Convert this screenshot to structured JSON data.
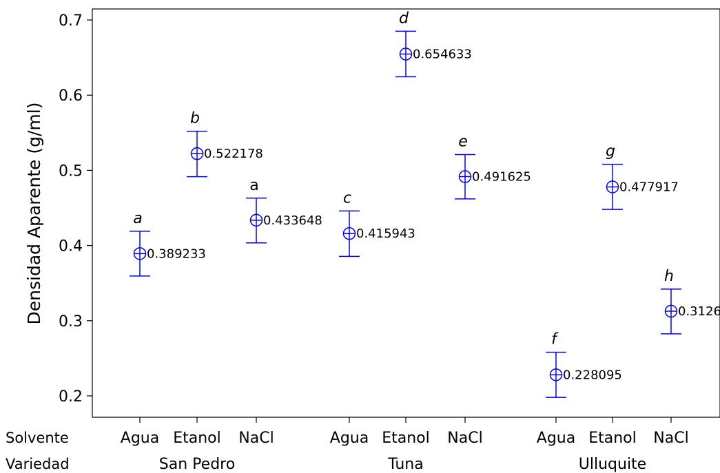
{
  "chart_data": {
    "type": "scatter",
    "ylabel": "Densidad Aparente (g/ml)",
    "ylim": [
      0.17,
      0.71
    ],
    "yticks": [
      0.2,
      0.3,
      0.4,
      0.5,
      0.6,
      0.7
    ],
    "ytick_labels": [
      "0.2",
      "0.3",
      "0.4",
      "0.5",
      "0.6",
      "0.7"
    ],
    "row_labels": {
      "solvente": "Solvente",
      "variedad": "Variedad"
    },
    "groups": [
      "San Pedro",
      "Tuna",
      "Ulluquite"
    ],
    "marker_color": "#0000ff",
    "points": [
      {
        "variedad": "San Pedro",
        "solvente": "Agua",
        "mean": 0.389233,
        "label": "0.389233",
        "letter": "a",
        "italic": true,
        "lower": 0.3595,
        "upper": 0.419
      },
      {
        "variedad": "San Pedro",
        "solvente": "Etanol",
        "mean": 0.522178,
        "label": "0.522178",
        "letter": "b",
        "italic": true,
        "lower": 0.4915,
        "upper": 0.552
      },
      {
        "variedad": "San Pedro",
        "solvente": "NaCl",
        "mean": 0.433648,
        "label": "0.433648",
        "letter": "a",
        "italic": false,
        "lower": 0.4035,
        "upper": 0.463
      },
      {
        "variedad": "Tuna",
        "solvente": "Agua",
        "mean": 0.415943,
        "label": "0.415943",
        "letter": "c",
        "italic": true,
        "lower": 0.3855,
        "upper": 0.446
      },
      {
        "variedad": "Tuna",
        "solvente": "Etanol",
        "mean": 0.654633,
        "label": "0.654633",
        "letter": "d",
        "italic": true,
        "lower": 0.6245,
        "upper": 0.685
      },
      {
        "variedad": "Tuna",
        "solvente": "NaCl",
        "mean": 0.491625,
        "label": "0.491625",
        "letter": "e",
        "italic": true,
        "lower": 0.462,
        "upper": 0.521
      },
      {
        "variedad": "Ulluquite",
        "solvente": "Agua",
        "mean": 0.228095,
        "label": "0.228095",
        "letter": "f",
        "italic": true,
        "lower": 0.198,
        "upper": 0.258
      },
      {
        "variedad": "Ulluquite",
        "solvente": "Etanol",
        "mean": 0.477917,
        "label": "0.477917",
        "letter": "g",
        "italic": true,
        "lower": 0.448,
        "upper": 0.508
      },
      {
        "variedad": "Ulluquite",
        "solvente": "NaCl",
        "mean": 0.3126,
        "label": "0.3126",
        "letter": "h",
        "italic": true,
        "lower": 0.2825,
        "upper": 0.342
      }
    ]
  }
}
